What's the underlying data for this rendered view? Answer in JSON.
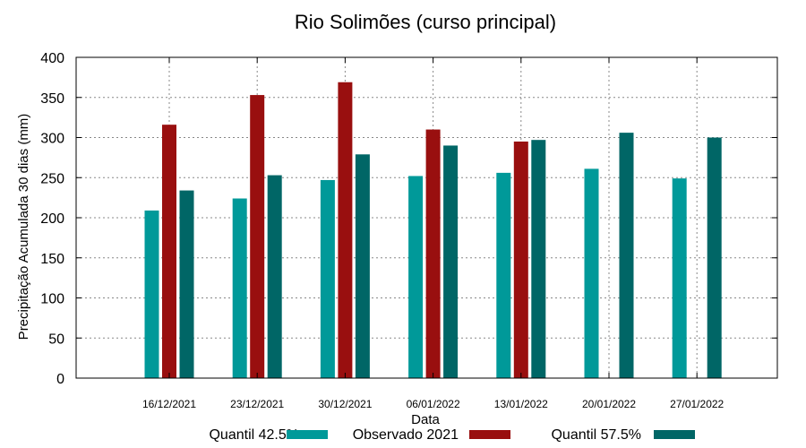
{
  "chart_data": {
    "type": "bar",
    "title": "Rio Solimões (curso principal)",
    "xlabel": "Data",
    "ylabel": "Precipitação Acumulada 30 dias (mm)",
    "ylim": [
      0,
      400
    ],
    "yticks": [
      0,
      50,
      100,
      150,
      200,
      250,
      300,
      350,
      400
    ],
    "grid": true,
    "legend_position": "bottom",
    "categories": [
      "16/12/2021",
      "23/12/2021",
      "30/12/2021",
      "06/01/2022",
      "13/01/2022",
      "20/01/2022",
      "27/01/2022"
    ],
    "series": [
      {
        "name": "Quantil 42.5%",
        "color": "#009999",
        "values": [
          209,
          224,
          247,
          252,
          256,
          261,
          249
        ]
      },
      {
        "name": "Observado 2021",
        "color": "#990f0f",
        "values": [
          316,
          353,
          369,
          310,
          295,
          null,
          null
        ]
      },
      {
        "name": "Quantil 57.5%",
        "color": "#006666",
        "values": [
          234,
          253,
          279,
          290,
          297,
          306,
          300
        ]
      }
    ]
  }
}
